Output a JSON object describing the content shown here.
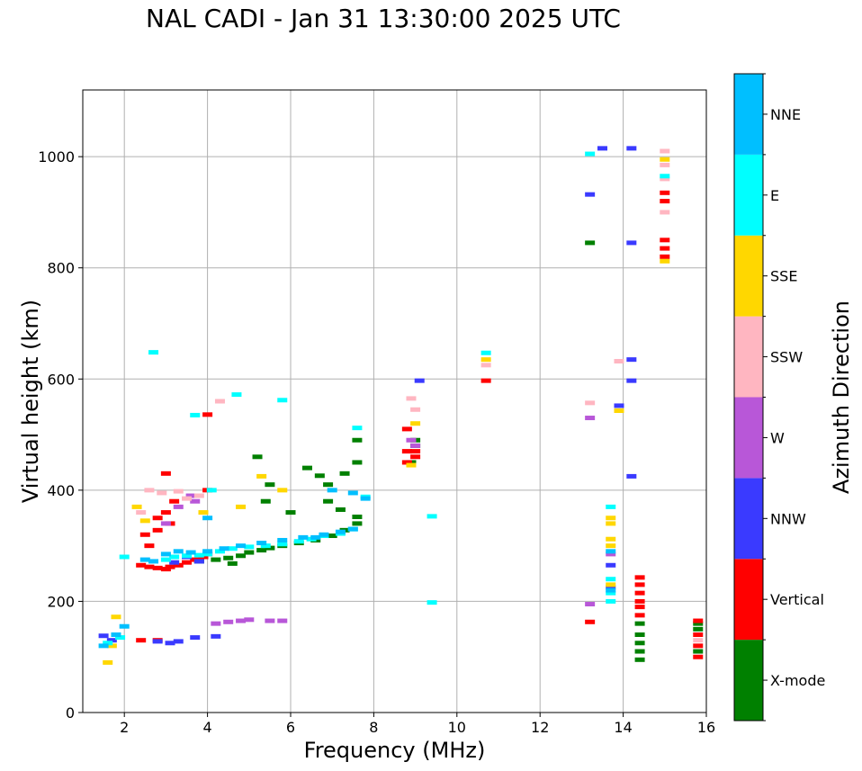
{
  "chart_data": {
    "type": "scatter",
    "title": "NAL CADI - Jan 31 13:30:00 2025 UTC",
    "xlabel": "Frequency (MHz)",
    "ylabel": "Virtual height (km)",
    "xlim": [
      1,
      16
    ],
    "ylim": [
      0,
      1120
    ],
    "xticks": [
      "2",
      "4",
      "6",
      "8",
      "10",
      "12",
      "14",
      "16"
    ],
    "yticks": [
      "0",
      "200",
      "400",
      "600",
      "800",
      "1000"
    ],
    "grid": true,
    "colorbar": {
      "label": "Azimuth Direction",
      "categories": [
        {
          "name": "X-mode",
          "color": "#008000"
        },
        {
          "name": "Vertical",
          "color": "#ff0000"
        },
        {
          "name": "NNW",
          "color": "#3a3aff"
        },
        {
          "name": "W",
          "color": "#b857d8"
        },
        {
          "name": "SSW",
          "color": "#ffb6c1"
        },
        {
          "name": "SSE",
          "color": "#ffd700"
        },
        {
          "name": "E",
          "color": "#00ffff"
        },
        {
          "name": "NNE",
          "color": "#00bfff"
        }
      ]
    },
    "series": [
      {
        "name": "X-mode",
        "points": [
          [
            4.2,
            275
          ],
          [
            4.5,
            278
          ],
          [
            4.8,
            282
          ],
          [
            5.0,
            288
          ],
          [
            5.3,
            292
          ],
          [
            5.5,
            296
          ],
          [
            5.8,
            300
          ],
          [
            6.2,
            305
          ],
          [
            6.6,
            310
          ],
          [
            7.0,
            318
          ],
          [
            7.3,
            328
          ],
          [
            7.6,
            340
          ],
          [
            7.6,
            352
          ],
          [
            7.2,
            365
          ],
          [
            6.9,
            380
          ],
          [
            6.7,
            426
          ],
          [
            6.4,
            440
          ],
          [
            6.9,
            410
          ],
          [
            7.3,
            430
          ],
          [
            7.6,
            450
          ],
          [
            7.6,
            490
          ],
          [
            5.2,
            460
          ],
          [
            5.5,
            410
          ],
          [
            6.0,
            360
          ],
          [
            5.4,
            380
          ],
          [
            3.8,
            272
          ],
          [
            4.6,
            268
          ],
          [
            8.9,
            450
          ],
          [
            9.0,
            480
          ],
          [
            9.0,
            490
          ],
          [
            13.2,
            845
          ],
          [
            14.4,
            95
          ],
          [
            14.4,
            110
          ],
          [
            14.4,
            125
          ],
          [
            14.4,
            140
          ],
          [
            14.4,
            160
          ],
          [
            15.8,
            110
          ],
          [
            15.8,
            150
          ],
          [
            15.8,
            160
          ]
        ]
      },
      {
        "name": "Vertical",
        "points": [
          [
            2.4,
            265
          ],
          [
            2.6,
            262
          ],
          [
            2.8,
            260
          ],
          [
            3.0,
            258
          ],
          [
            3.1,
            262
          ],
          [
            3.3,
            265
          ],
          [
            3.5,
            270
          ],
          [
            3.7,
            275
          ],
          [
            3.9,
            280
          ],
          [
            4.0,
            285
          ],
          [
            2.5,
            320
          ],
          [
            3.0,
            360
          ],
          [
            3.1,
            340
          ],
          [
            3.2,
            380
          ],
          [
            2.6,
            300
          ],
          [
            2.8,
            350
          ],
          [
            4.0,
            536
          ],
          [
            4.0,
            400
          ],
          [
            2.8,
            328
          ],
          [
            3.0,
            430
          ],
          [
            2.4,
            130
          ],
          [
            8.8,
            450
          ],
          [
            8.8,
            470
          ],
          [
            8.8,
            510
          ],
          [
            9.0,
            470
          ],
          [
            9.0,
            460
          ],
          [
            10.7,
            597
          ],
          [
            14.4,
            200
          ],
          [
            14.4,
            215
          ],
          [
            14.4,
            230
          ],
          [
            14.4,
            243
          ],
          [
            14.4,
            190
          ],
          [
            14.4,
            175
          ],
          [
            13.2,
            163
          ],
          [
            15.0,
            820
          ],
          [
            15.0,
            835
          ],
          [
            15.0,
            850
          ],
          [
            15.0,
            920
          ],
          [
            15.0,
            935
          ],
          [
            15.8,
            100
          ],
          [
            15.8,
            120
          ],
          [
            15.8,
            140
          ],
          [
            15.8,
            165
          ],
          [
            2.8,
            130
          ]
        ]
      },
      {
        "name": "NNW",
        "points": [
          [
            1.5,
            138
          ],
          [
            1.7,
            130
          ],
          [
            2.8,
            128
          ],
          [
            3.1,
            125
          ],
          [
            3.3,
            128
          ],
          [
            3.7,
            135
          ],
          [
            4.2,
            137
          ],
          [
            3.5,
            280
          ],
          [
            3.8,
            272
          ],
          [
            3.2,
            270
          ],
          [
            9.1,
            597
          ],
          [
            14.2,
            425
          ],
          [
            14.2,
            597
          ],
          [
            14.2,
            635
          ],
          [
            14.2,
            845
          ],
          [
            14.2,
            1015
          ],
          [
            13.5,
            1015
          ],
          [
            13.2,
            932
          ],
          [
            13.7,
            265
          ],
          [
            13.9,
            552
          ],
          [
            13.7,
            225
          ]
        ]
      },
      {
        "name": "W",
        "points": [
          [
            4.5,
            163
          ],
          [
            4.8,
            165
          ],
          [
            5.0,
            167
          ],
          [
            5.5,
            165
          ],
          [
            5.8,
            165
          ],
          [
            4.2,
            160
          ],
          [
            3.7,
            380
          ],
          [
            3.6,
            390
          ],
          [
            3.3,
            370
          ],
          [
            3.0,
            340
          ],
          [
            8.9,
            490
          ],
          [
            9.0,
            480
          ],
          [
            13.2,
            530
          ],
          [
            13.2,
            195
          ],
          [
            13.7,
            285
          ]
        ]
      },
      {
        "name": "SSW",
        "points": [
          [
            2.6,
            400
          ],
          [
            2.9,
            395
          ],
          [
            3.3,
            398
          ],
          [
            3.5,
            385
          ],
          [
            3.8,
            390
          ],
          [
            4.3,
            560
          ],
          [
            2.4,
            360
          ],
          [
            8.9,
            565
          ],
          [
            9.0,
            545
          ],
          [
            10.7,
            625
          ],
          [
            13.2,
            557
          ],
          [
            13.9,
            632
          ],
          [
            15.0,
            900
          ],
          [
            15.0,
            960
          ],
          [
            15.0,
            985
          ],
          [
            15.0,
            1010
          ],
          [
            15.8,
            130
          ]
        ]
      },
      {
        "name": "SSE",
        "points": [
          [
            2.3,
            370
          ],
          [
            2.5,
            345
          ],
          [
            1.7,
            120
          ],
          [
            1.8,
            172
          ],
          [
            1.6,
            90
          ],
          [
            3.9,
            360
          ],
          [
            4.8,
            370
          ],
          [
            5.3,
            425
          ],
          [
            5.8,
            400
          ],
          [
            8.9,
            445
          ],
          [
            9.0,
            520
          ],
          [
            10.7,
            635
          ],
          [
            13.7,
            350
          ],
          [
            13.7,
            340
          ],
          [
            13.7,
            312
          ],
          [
            13.7,
            300
          ],
          [
            13.7,
            230
          ],
          [
            13.9,
            543
          ],
          [
            15.0,
            812
          ],
          [
            15.0,
            995
          ]
        ]
      },
      {
        "name": "E",
        "points": [
          [
            3.0,
            275
          ],
          [
            3.2,
            280
          ],
          [
            3.5,
            282
          ],
          [
            3.8,
            283
          ],
          [
            4.0,
            285
          ],
          [
            4.3,
            290
          ],
          [
            4.6,
            295
          ],
          [
            5.0,
            298
          ],
          [
            5.4,
            300
          ],
          [
            5.8,
            303
          ],
          [
            6.2,
            308
          ],
          [
            6.5,
            312
          ],
          [
            6.8,
            318
          ],
          [
            7.2,
            322
          ],
          [
            7.5,
            330
          ],
          [
            3.7,
            535
          ],
          [
            4.7,
            572
          ],
          [
            5.8,
            562
          ],
          [
            2.7,
            648
          ],
          [
            9.4,
            353
          ],
          [
            9.4,
            198
          ],
          [
            10.7,
            647
          ],
          [
            13.7,
            200
          ],
          [
            13.7,
            215
          ],
          [
            13.7,
            240
          ],
          [
            13.7,
            370
          ],
          [
            13.2,
            1005
          ],
          [
            15.0,
            965
          ],
          [
            1.6,
            125
          ],
          [
            1.9,
            135
          ],
          [
            2.0,
            280
          ],
          [
            4.1,
            400
          ],
          [
            7.6,
            512
          ],
          [
            7.8,
            388
          ]
        ]
      },
      {
        "name": "NNE",
        "points": [
          [
            2.5,
            275
          ],
          [
            2.7,
            272
          ],
          [
            3.0,
            285
          ],
          [
            3.3,
            290
          ],
          [
            3.6,
            288
          ],
          [
            4.0,
            290
          ],
          [
            4.4,
            295
          ],
          [
            4.8,
            300
          ],
          [
            5.3,
            305
          ],
          [
            5.8,
            310
          ],
          [
            6.3,
            315
          ],
          [
            6.8,
            320
          ],
          [
            7.2,
            325
          ],
          [
            7.5,
            330
          ],
          [
            7.8,
            385
          ],
          [
            4.0,
            350
          ],
          [
            6.6,
            315
          ],
          [
            7.0,
            400
          ],
          [
            7.5,
            395
          ],
          [
            13.7,
            220
          ],
          [
            13.7,
            290
          ],
          [
            1.5,
            120
          ],
          [
            1.8,
            140
          ],
          [
            2.0,
            155
          ]
        ]
      }
    ]
  }
}
